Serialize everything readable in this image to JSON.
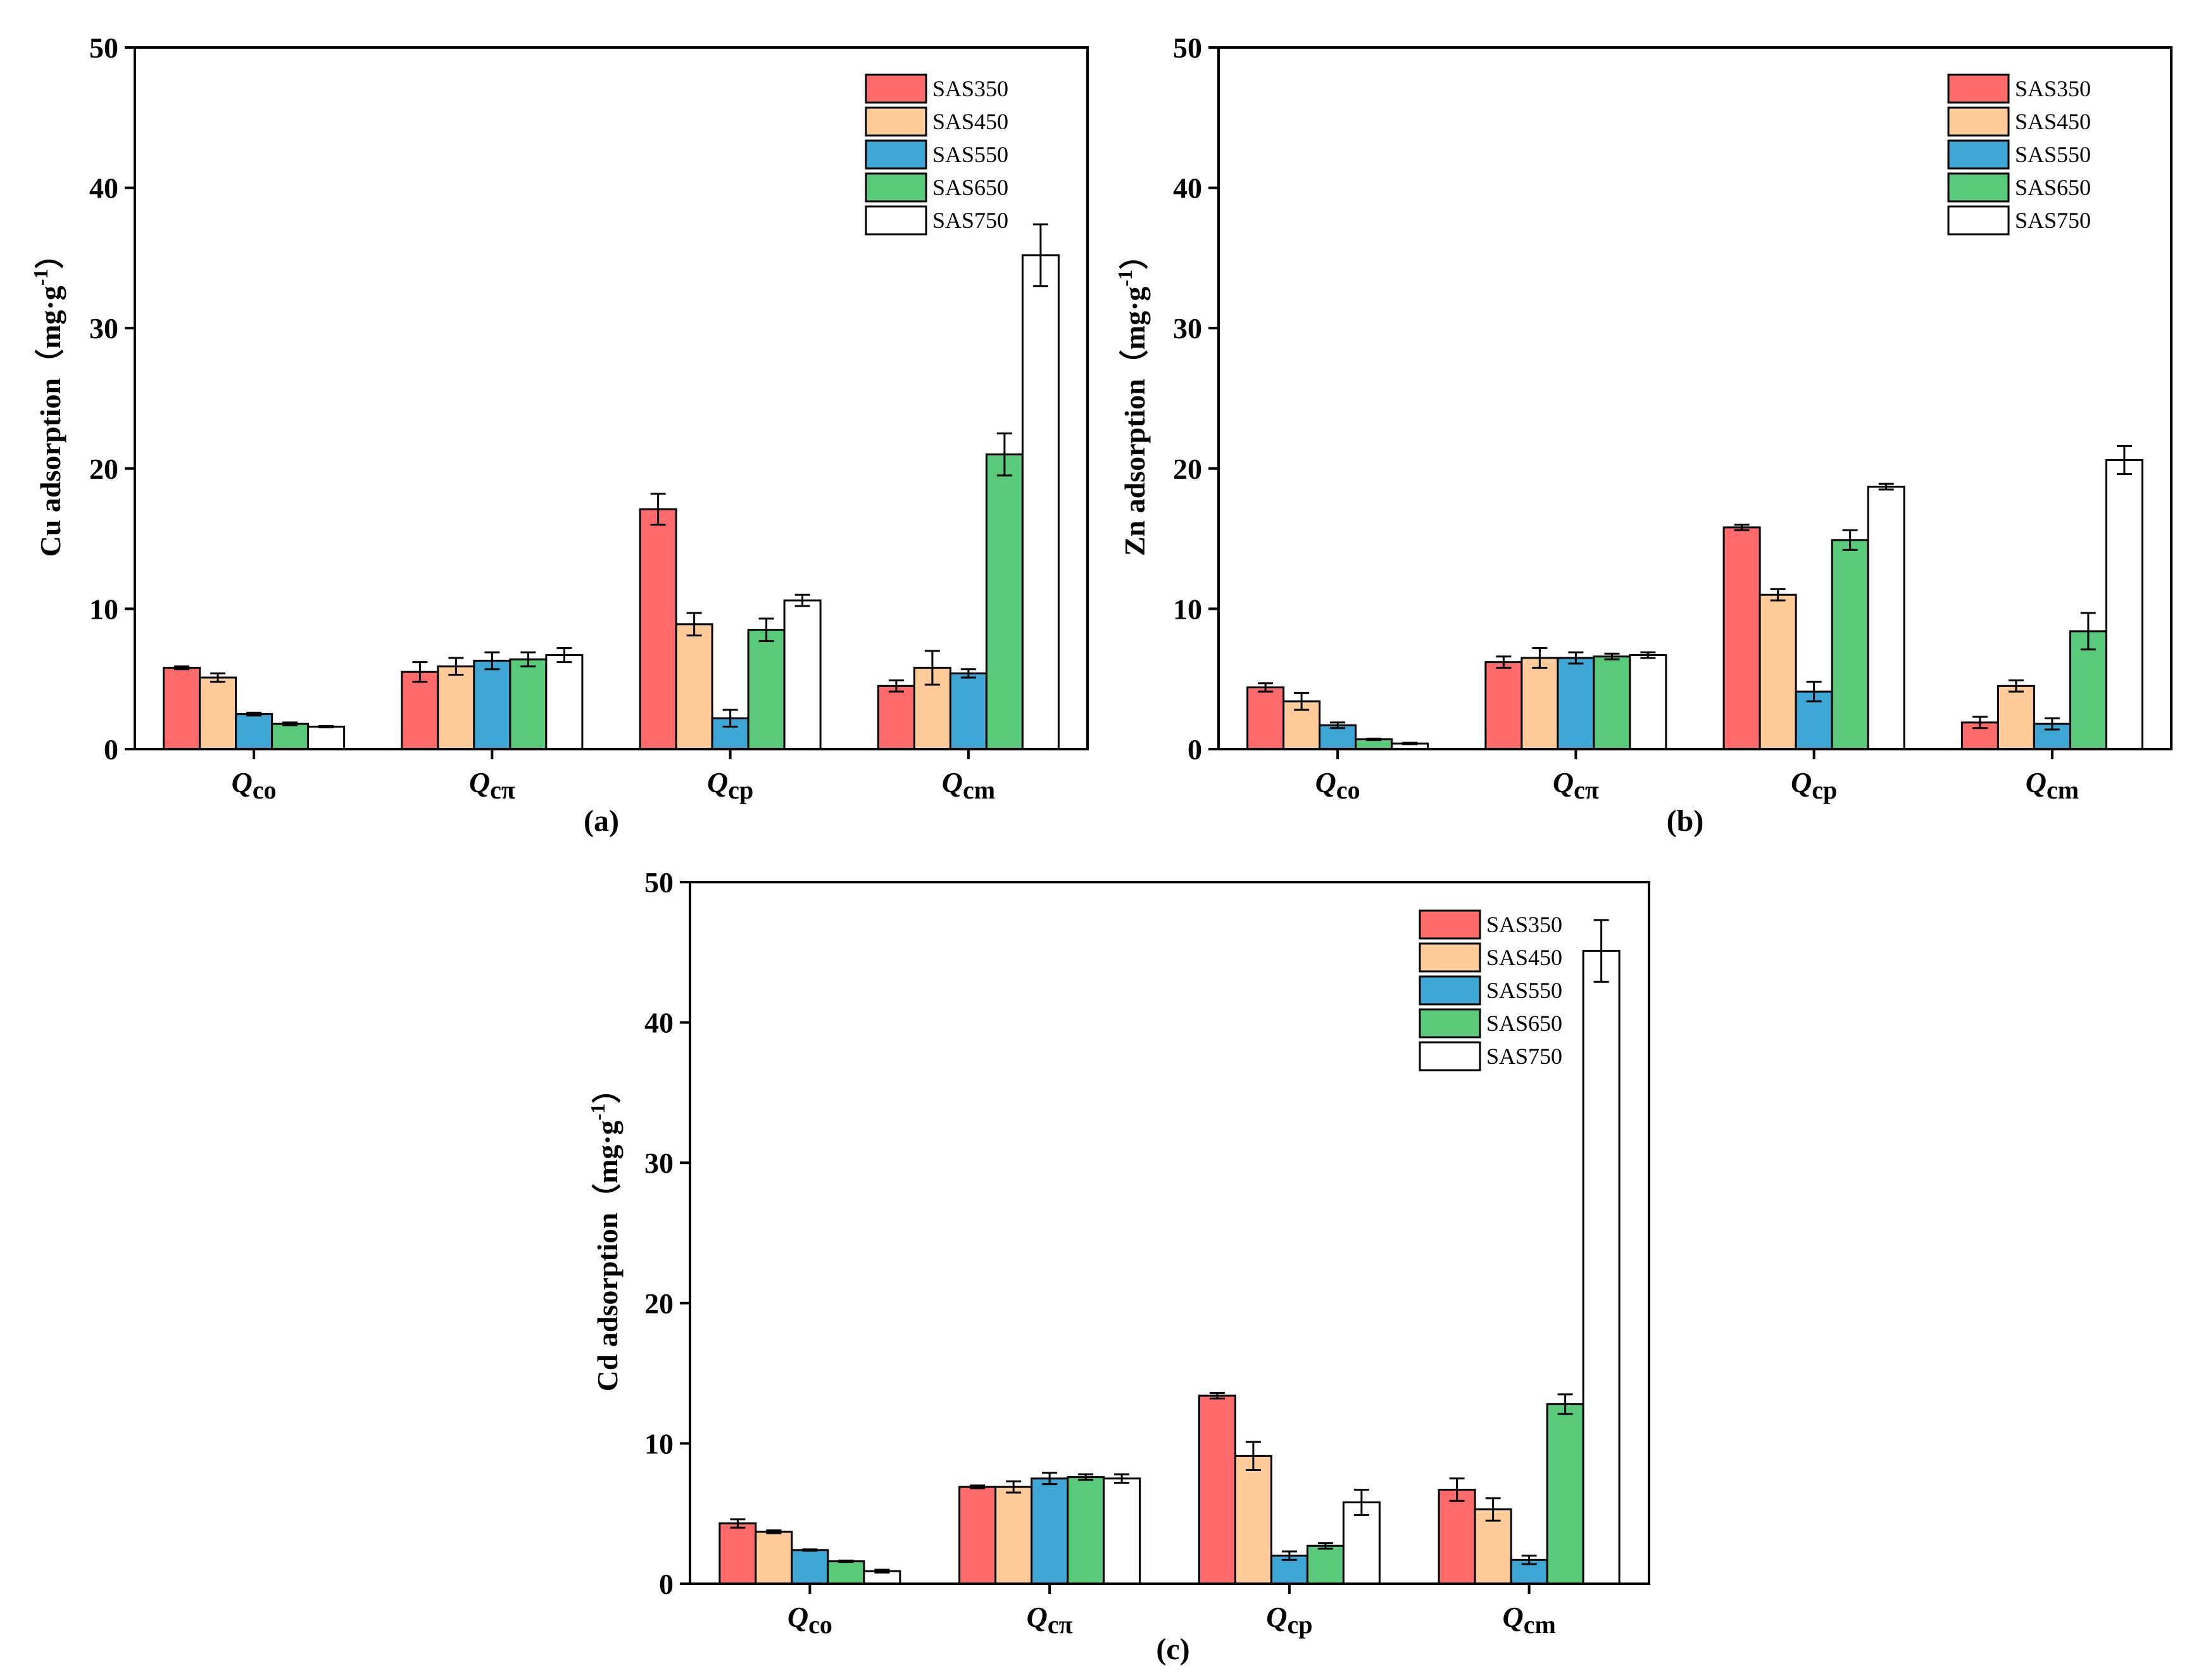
{
  "colors": {
    "SAS350": "#FF6B6B",
    "SAS450": "#FFCC99",
    "SAS550": "#3FA7D6",
    "SAS650": "#59C97A",
    "SAS750": "#FFFFFF",
    "edge": "#000000"
  },
  "chart_data": [
    {
      "type": "bar",
      "panel_label": "(a)",
      "ylabel": "Cu adsorption（mg·g",
      "ylabel_sup": "-1",
      "ylabel_close": "）",
      "ylim": [
        0,
        50
      ],
      "yticks": [
        0,
        10,
        20,
        30,
        40,
        50
      ],
      "categories": [
        {
          "main": "Q",
          "sub": "co"
        },
        {
          "main": "Q",
          "sub": "cπ"
        },
        {
          "main": "Q",
          "sub": "cp"
        },
        {
          "main": "Q",
          "sub": "cm"
        }
      ],
      "legend_position": "top-right",
      "series": [
        {
          "name": "SAS350",
          "values": [
            5.8,
            5.5,
            17.1,
            4.5
          ],
          "errors": [
            0.1,
            0.7,
            1.1,
            0.4
          ]
        },
        {
          "name": "SAS450",
          "values": [
            5.1,
            5.9,
            8.9,
            5.8
          ],
          "errors": [
            0.3,
            0.6,
            0.8,
            1.2
          ]
        },
        {
          "name": "SAS550",
          "values": [
            2.5,
            6.3,
            2.2,
            5.4
          ],
          "errors": [
            0.1,
            0.6,
            0.6,
            0.3
          ]
        },
        {
          "name": "SAS650",
          "values": [
            1.8,
            6.4,
            8.5,
            21.0
          ],
          "errors": [
            0.1,
            0.5,
            0.8,
            1.5
          ]
        },
        {
          "name": "SAS750",
          "values": [
            1.6,
            6.7,
            10.6,
            35.2
          ],
          "errors": [
            0.05,
            0.5,
            0.4,
            2.2
          ]
        }
      ]
    },
    {
      "type": "bar",
      "panel_label": "(b)",
      "ylabel": "Zn adsorption（mg·g",
      "ylabel_sup": "-1",
      "ylabel_close": "）",
      "ylim": [
        0,
        50
      ],
      "yticks": [
        0,
        10,
        20,
        30,
        40,
        50
      ],
      "categories": [
        {
          "main": "Q",
          "sub": "co"
        },
        {
          "main": "Q",
          "sub": "cπ"
        },
        {
          "main": "Q",
          "sub": "cp"
        },
        {
          "main": "Q",
          "sub": "cm"
        }
      ],
      "legend_position": "top-right",
      "series": [
        {
          "name": "SAS350",
          "values": [
            4.4,
            6.2,
            15.8,
            1.9
          ],
          "errors": [
            0.3,
            0.4,
            0.2,
            0.4
          ]
        },
        {
          "name": "SAS450",
          "values": [
            3.4,
            6.5,
            11.0,
            4.5
          ],
          "errors": [
            0.6,
            0.7,
            0.4,
            0.4
          ]
        },
        {
          "name": "SAS550",
          "values": [
            1.7,
            6.5,
            4.1,
            1.8
          ],
          "errors": [
            0.2,
            0.4,
            0.7,
            0.4
          ]
        },
        {
          "name": "SAS650",
          "values": [
            0.7,
            6.6,
            14.9,
            8.4
          ],
          "errors": [
            0.05,
            0.2,
            0.7,
            1.3
          ]
        },
        {
          "name": "SAS750",
          "values": [
            0.4,
            6.7,
            18.7,
            20.6
          ],
          "errors": [
            0.05,
            0.2,
            0.2,
            1.0
          ]
        }
      ]
    },
    {
      "type": "bar",
      "panel_label": "(c)",
      "ylabel": "Cd adsorption（mg·g",
      "ylabel_sup": "-1",
      "ylabel_close": "）",
      "ylim": [
        0,
        50
      ],
      "yticks": [
        0,
        10,
        20,
        30,
        40,
        50
      ],
      "categories": [
        {
          "main": "Q",
          "sub": "co"
        },
        {
          "main": "Q",
          "sub": "cπ"
        },
        {
          "main": "Q",
          "sub": "cp"
        },
        {
          "main": "Q",
          "sub": "cm"
        }
      ],
      "legend_position": "top-right",
      "series": [
        {
          "name": "SAS350",
          "values": [
            4.3,
            6.9,
            13.4,
            6.7
          ],
          "errors": [
            0.3,
            0.1,
            0.2,
            0.8
          ]
        },
        {
          "name": "SAS450",
          "values": [
            3.7,
            6.9,
            9.1,
            5.3
          ],
          "errors": [
            0.1,
            0.4,
            1.0,
            0.8
          ]
        },
        {
          "name": "SAS550",
          "values": [
            2.4,
            7.5,
            2.0,
            1.7
          ],
          "errors": [
            0.05,
            0.4,
            0.3,
            0.3
          ]
        },
        {
          "name": "SAS650",
          "values": [
            1.6,
            7.6,
            2.7,
            12.8
          ],
          "errors": [
            0.05,
            0.2,
            0.2,
            0.7
          ]
        },
        {
          "name": "SAS750",
          "values": [
            0.9,
            7.5,
            5.8,
            45.1
          ],
          "errors": [
            0.1,
            0.3,
            0.9,
            2.2
          ]
        }
      ]
    }
  ]
}
